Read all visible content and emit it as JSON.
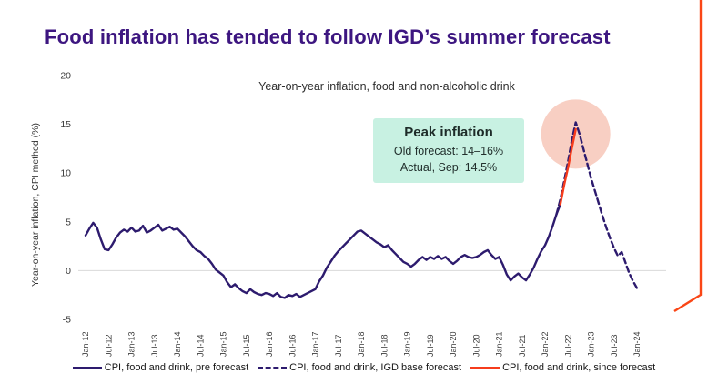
{
  "slide": {
    "title": "Food inflation has tended to follow IGD’s summer forecast"
  },
  "callout": {
    "title": "Peak inflation",
    "line1": "Old forecast: 14–16%",
    "line2": "Actual, Sep: 14.5%"
  },
  "colors": {
    "title_purple": "#3d1680",
    "series_purple": "#2d1b6e",
    "series_red": "#f63c1c",
    "callout_mint": "#c8f1e2",
    "highlight_pink": "#f8cfc3",
    "gridline": "#d9d9d9",
    "brand_orange": "#fa4616",
    "axis_text": "#3a3a3a"
  },
  "chart_data": {
    "type": "line",
    "title": "Year-on-year inflation, food and non-alcoholic drink",
    "ylabel": "Year-on-year inflation, CPI method (%)",
    "ylim": [
      -5,
      20
    ],
    "y_ticks": [
      20,
      15,
      10,
      5,
      0,
      -5
    ],
    "grid": "zero-line only",
    "legend_position": "bottom",
    "x_unit": "monthly, Jan-12 to Jan-24, tick every 6 months",
    "x_tick_labels": [
      "Jan-12",
      "Jul-12",
      "Jan-13",
      "Jul-13",
      "Jan-14",
      "Jul-14",
      "Jan-15",
      "Jul-15",
      "Jan-16",
      "Jul-16",
      "Jan-17",
      "Jul-17",
      "Jan-18",
      "Jul-18",
      "Jan-19",
      "Jul-19",
      "Jan-20",
      "Jul-20",
      "Jan-21",
      "Jul-21",
      "Jan-22",
      "Jul-22",
      "Jan-23",
      "Jul-23",
      "Jan-24"
    ],
    "series": [
      {
        "name": "CPI, food and drink, pre forecast",
        "style": "solid",
        "color": "#2d1b6e",
        "start_month": 0,
        "start_label": "Jan-12",
        "values": [
          3.6,
          4.3,
          4.9,
          4.4,
          3.2,
          2.2,
          2.1,
          2.7,
          3.4,
          3.9,
          4.2,
          4.0,
          4.4,
          4.0,
          4.1,
          4.6,
          3.9,
          4.1,
          4.4,
          4.7,
          4.1,
          4.3,
          4.5,
          4.2,
          4.3,
          3.9,
          3.5,
          3.0,
          2.5,
          2.1,
          1.9,
          1.5,
          1.2,
          0.7,
          0.1,
          -0.2,
          -0.5,
          -1.2,
          -1.7,
          -1.4,
          -1.8,
          -2.1,
          -2.3,
          -1.9,
          -2.2,
          -2.4,
          -2.5,
          -2.3,
          -2.4,
          -2.6,
          -2.3,
          -2.7,
          -2.8,
          -2.5,
          -2.6,
          -2.4,
          -2.7,
          -2.5,
          -2.3,
          -2.1,
          -1.9,
          -1.1,
          -0.5,
          0.3,
          0.9,
          1.5,
          2.0,
          2.4,
          2.8,
          3.2,
          3.6,
          4.0,
          4.1,
          3.8,
          3.5,
          3.2,
          2.9,
          2.7,
          2.4,
          2.6,
          2.1,
          1.7,
          1.3,
          0.9,
          0.7,
          0.4,
          0.7,
          1.1,
          1.4,
          1.1,
          1.4,
          1.2,
          1.5,
          1.2,
          1.4,
          1.0,
          0.7,
          1.0,
          1.4,
          1.6,
          1.4,
          1.3,
          1.4,
          1.6,
          1.9,
          2.1,
          1.6,
          1.2,
          1.4,
          0.6,
          -0.4,
          -1.0,
          -0.6,
          -0.3,
          -0.7,
          -1.0,
          -0.4,
          0.3,
          1.2,
          2.0,
          2.6,
          3.5,
          4.6,
          5.8,
          6.8
        ]
      },
      {
        "name": "CPI, food and drink, IGD base forecast",
        "style": "dashed",
        "color": "#2d1b6e",
        "start_month": 123,
        "start_label": "Apr-22",
        "values": [
          5.8,
          7.3,
          9.2,
          11.2,
          13.4,
          15.2,
          14.0,
          12.5,
          11.0,
          9.5,
          8.2,
          6.9,
          5.6,
          4.4,
          3.3,
          2.3,
          1.5,
          1.9,
          0.8,
          -0.3,
          -1.1,
          -1.8
        ]
      },
      {
        "name": "CPI, food and drink, since forecast",
        "style": "solid",
        "color": "#f63c1c",
        "start_month": 124,
        "start_label": "May-22",
        "values": [
          6.8,
          8.8,
          10.6,
          12.6,
          14.5
        ]
      }
    ],
    "highlight_circle": {
      "month": 128,
      "value": 14,
      "radius_px": 38
    },
    "annotation": "Peak inflation — Old forecast: 14–16%; Actual, Sep: 14.5%"
  }
}
